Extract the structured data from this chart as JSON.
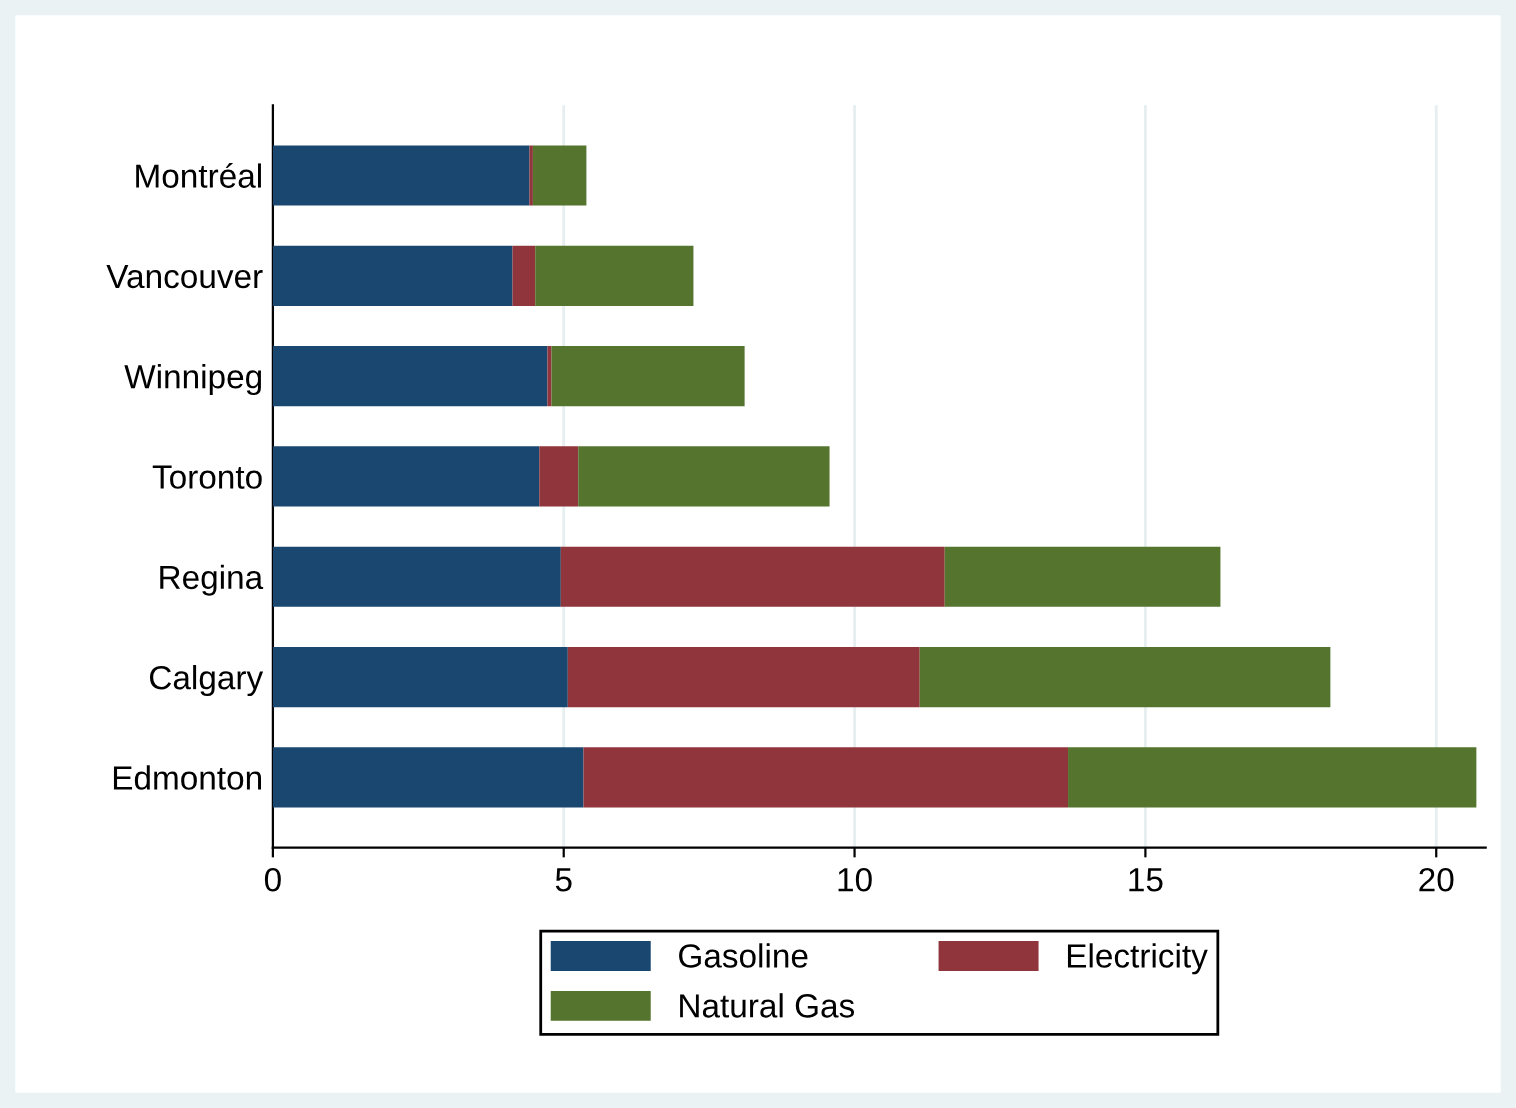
{
  "chart_data": {
    "type": "bar",
    "orientation": "horizontal",
    "stacked": true,
    "categories": [
      "Montréal",
      "Vancouver",
      "Winnipeg",
      "Toronto",
      "Regina",
      "Calgary",
      "Edmonton"
    ],
    "series": [
      {
        "name": "Gasoline",
        "color": "#1a476f",
        "values": [
          4.41,
          4.12,
          4.72,
          4.58,
          4.95,
          5.07,
          5.34
        ]
      },
      {
        "name": "Electricity",
        "color": "#90353b",
        "values": [
          0.06,
          0.39,
          0.07,
          0.67,
          6.6,
          6.05,
          8.33
        ]
      },
      {
        "name": "Natural Gas",
        "color": "#55752f",
        "values": [
          0.92,
          2.72,
          3.32,
          4.32,
          4.74,
          7.06,
          7.02
        ]
      }
    ],
    "xlim": [
      0,
      20.85
    ],
    "xticks": [
      0,
      5,
      10,
      15,
      20
    ],
    "grid": "x",
    "legend": "bottom"
  }
}
